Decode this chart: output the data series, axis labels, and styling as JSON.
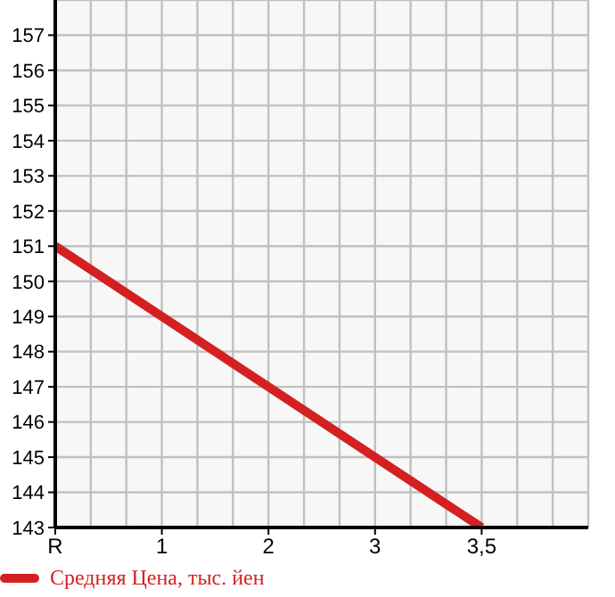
{
  "chart_data": {
    "type": "line",
    "categories": [
      "R",
      "1",
      "2",
      "3",
      "3,5"
    ],
    "series": [
      {
        "name": "Средняя Цена, тыс. йен",
        "color": "#d42020",
        "values": [
          151,
          149,
          147,
          145,
          143
        ]
      }
    ],
    "ylim": [
      143,
      158
    ],
    "yticks": [
      143,
      144,
      145,
      146,
      147,
      148,
      149,
      150,
      151,
      152,
      153,
      154,
      155,
      156,
      157
    ],
    "grid": true,
    "legend": "bottom",
    "marker": "none",
    "line_style": "solid"
  }
}
